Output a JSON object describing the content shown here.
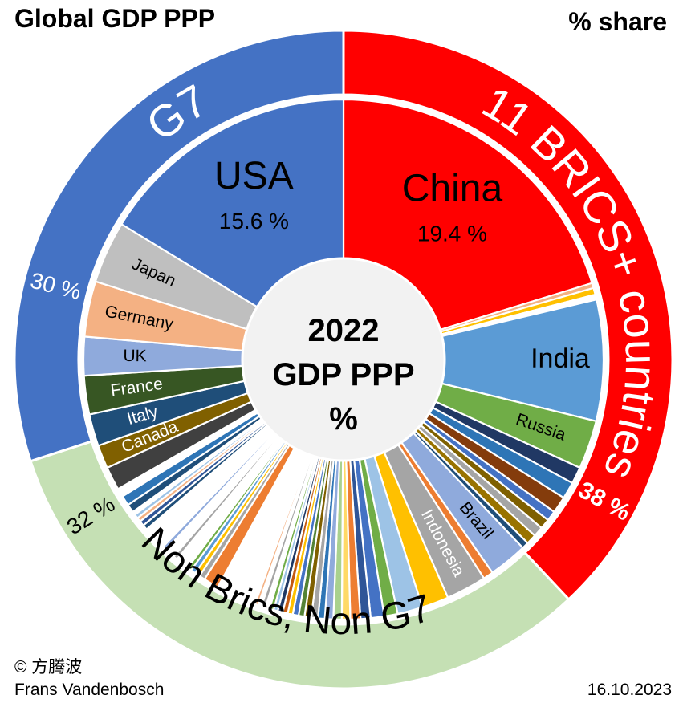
{
  "header": {
    "title": "Global GDP PPP",
    "subtitle": "% share"
  },
  "center": {
    "line1": "2022",
    "line2": "GDP PPP",
    "line3": "%"
  },
  "footer": {
    "copyright": "© 方腾波",
    "author": "Frans Vandenbosch",
    "date": "16.10.2023"
  },
  "colors": {
    "g7": "#4472C4",
    "brics": "#FF0000",
    "other": "#C5E0B4"
  },
  "chart_data": {
    "type": "pie",
    "title": "Global GDP PPP",
    "subtitle": "% share",
    "groups": [
      {
        "name": "G7",
        "share_label": "30 %",
        "value": 30,
        "color": "#4472C4"
      },
      {
        "name": "11 BRICS+ countries",
        "share_label": "38 %",
        "value": 38,
        "color": "#FF0000"
      },
      {
        "name": "Non Brics, Non G7",
        "share_label": "32 %",
        "value": 32,
        "color": "#C5E0B4"
      }
    ],
    "slices": [
      {
        "name": "China",
        "label": "China",
        "value_label": "19.4 %",
        "value": 19.4,
        "color": "#FF0000",
        "text_color": "#000000"
      },
      {
        "name": "",
        "value": 0.3,
        "color": "#F4B183"
      },
      {
        "name": "",
        "value": 0.4,
        "color": "#FFC000"
      },
      {
        "name": "",
        "value": 0.3,
        "color": "#FFFFFF"
      },
      {
        "name": "India",
        "label": "India",
        "value": 7.2,
        "color": "#5B9BD5",
        "text_color": "#000000"
      },
      {
        "name": "Russia",
        "label": "Russia",
        "value": 2.9,
        "color": "#70AD47",
        "text_color": "#000000"
      },
      {
        "name": "",
        "value": 1.0,
        "color": "#203864"
      },
      {
        "name": "",
        "value": 1.0,
        "color": "#2E75B6"
      },
      {
        "name": "",
        "value": 1.0,
        "color": "#843C0C"
      },
      {
        "name": "",
        "value": 0.6,
        "color": "#4472C4"
      },
      {
        "name": "",
        "value": 0.6,
        "color": "#7F6000"
      },
      {
        "name": "",
        "value": 0.6,
        "color": "#A5A5A5"
      },
      {
        "name": "",
        "value": 0.6,
        "color": "#997300"
      },
      {
        "name": "",
        "value": 0.4,
        "color": "#1F4E79"
      },
      {
        "name": "Brazil",
        "label": "Brazil",
        "value": 2.3,
        "color": "#8FAADC",
        "text_color": "#000000"
      },
      {
        "name": "",
        "value": 0.6,
        "color": "#ED7D31"
      },
      {
        "name": "Indonesia",
        "label": "Indonesia",
        "value": 2.4,
        "color": "#A5A5A5",
        "text_color": "#FFFFFF"
      },
      {
        "name": "",
        "value": 1.6,
        "color": "#FFC000"
      },
      {
        "name": "",
        "value": 1.5,
        "color": "#9DC3E6"
      },
      {
        "name": "",
        "value": 0.8,
        "color": "#70AD47"
      },
      {
        "name": "",
        "value": 0.8,
        "color": "#4472C4"
      },
      {
        "name": "",
        "value": 0.6,
        "color": "#2F5597"
      },
      {
        "name": "",
        "value": 0.6,
        "color": "#ED7D31"
      },
      {
        "name": "",
        "value": 0.5,
        "color": "#FFD966"
      },
      {
        "name": "",
        "value": 0.5,
        "color": "#A9D18E"
      },
      {
        "name": "",
        "value": 0.5,
        "color": "#8FAADC"
      },
      {
        "name": "",
        "value": 0.4,
        "color": "#2E75B6"
      },
      {
        "name": "",
        "value": 0.4,
        "color": "#A5A5A5"
      },
      {
        "name": "",
        "value": 0.4,
        "color": "#7F6000"
      },
      {
        "name": "",
        "value": 0.35,
        "color": "#548235"
      },
      {
        "name": "",
        "value": 0.35,
        "color": "#4472C4"
      },
      {
        "name": "",
        "value": 0.3,
        "color": "#FFC000"
      },
      {
        "name": "",
        "value": 0.3,
        "color": "#C55A11"
      },
      {
        "name": "",
        "value": 0.3,
        "color": "#203864"
      },
      {
        "name": "",
        "value": 0.25,
        "color": "#9DC3E6"
      },
      {
        "name": "",
        "value": 0.25,
        "color": "#70AD47"
      },
      {
        "name": "",
        "value": 0.25,
        "color": "#FFFFFF"
      },
      {
        "name": "",
        "value": 0.25,
        "color": "#A5A5A5"
      },
      {
        "name": "",
        "value": 0.2,
        "color": "#FFFFFF"
      },
      {
        "name": "",
        "value": 0.2,
        "color": "#F4B183"
      },
      {
        "name": "",
        "value": 0.2,
        "color": "#FFFFFF"
      },
      {
        "name": "",
        "value": 0.2,
        "color": "#FFFFFF"
      },
      {
        "name": "",
        "value": 0.2,
        "color": "#FFFFFF"
      },
      {
        "name": "",
        "value": 0.2,
        "color": "#FFFFFF"
      },
      {
        "name": "",
        "value": 0.2,
        "color": "#FFFFFF"
      },
      {
        "name": "",
        "value": 0.2,
        "color": "#FFFFFF"
      },
      {
        "name": "",
        "value": 0.2,
        "color": "#FFFFFF"
      },
      {
        "name": "",
        "value": 0.2,
        "color": "#FFFFFF"
      },
      {
        "name": "",
        "value": 0.2,
        "color": "#FFFFFF"
      },
      {
        "name": "",
        "value": 0.2,
        "color": "#FFFFFF"
      },
      {
        "name": "",
        "value": 0.2,
        "color": "#FFFFFF"
      },
      {
        "name": "",
        "value": 0.2,
        "color": "#FFFFFF"
      },
      {
        "name": "",
        "value": 0.9,
        "color": "#ED7D31"
      },
      {
        "name": "",
        "value": 0.35,
        "color": "#A5A5A5"
      },
      {
        "name": "",
        "value": 0.3,
        "color": "#FFC000"
      },
      {
        "name": "",
        "value": 0.3,
        "color": "#5B9BD5"
      },
      {
        "name": "",
        "value": 0.25,
        "color": "#70AD47"
      },
      {
        "name": "",
        "value": 0.2,
        "color": "#FFFFFF"
      },
      {
        "name": "",
        "value": 0.2,
        "color": "#FFFFFF"
      },
      {
        "name": "",
        "value": 0.2,
        "color": "#FFFFFF"
      },
      {
        "name": "",
        "value": 0.2,
        "color": "#FFFFFF"
      },
      {
        "name": "",
        "value": 0.25,
        "color": "#A5A5A5"
      },
      {
        "name": "",
        "value": 0.2,
        "color": "#FFFFFF"
      },
      {
        "name": "",
        "value": 0.2,
        "color": "#FFFFFF"
      },
      {
        "name": "",
        "value": 0.2,
        "color": "#FFFFFF"
      },
      {
        "name": "",
        "value": 0.25,
        "color": "#8FAADC"
      },
      {
        "name": "",
        "value": 0.2,
        "color": "#FFFFFF"
      },
      {
        "name": "",
        "value": 0.2,
        "color": "#FFFFFF"
      },
      {
        "name": "",
        "value": 0.2,
        "color": "#FFFFFF"
      },
      {
        "name": "",
        "value": 0.2,
        "color": "#FFFFFF"
      },
      {
        "name": "",
        "value": 0.2,
        "color": "#FFFFFF"
      },
      {
        "name": "",
        "value": 0.2,
        "color": "#FFFFFF"
      },
      {
        "name": "",
        "value": 0.2,
        "color": "#FFFFFF"
      },
      {
        "name": "",
        "value": 0.3,
        "color": "#1F4E79"
      },
      {
        "name": "",
        "value": 0.3,
        "color": "#2F5597"
      },
      {
        "name": "",
        "value": 0.25,
        "color": "#F4B183"
      },
      {
        "name": "",
        "value": 0.25,
        "color": "#9DC3E6"
      },
      {
        "name": "",
        "value": 0.2,
        "color": "#FFFFFF"
      },
      {
        "name": "",
        "value": 0.5,
        "color": "#1F4E79"
      },
      {
        "name": "",
        "value": 0.6,
        "color": "#2E75B6"
      },
      {
        "name": "",
        "value": 0.5,
        "color": "#FFFFFF"
      },
      {
        "name": "",
        "value": 1.4,
        "color": "#404040"
      },
      {
        "name": "Canada",
        "label": "Canada",
        "value": 1.4,
        "color": "#806000",
        "text_color": "#FFFFFF"
      },
      {
        "name": "Italy",
        "label": "Italy",
        "value": 1.9,
        "color": "#1F4E79",
        "text_color": "#FFFFFF"
      },
      {
        "name": "France",
        "label": "France",
        "value": 2.3,
        "color": "#375623",
        "text_color": "#FFFFFF"
      },
      {
        "name": "UK",
        "label": "UK",
        "value": 2.3,
        "color": "#8FAADC",
        "text_color": "#000000"
      },
      {
        "name": "Germany",
        "label": "Germany",
        "value": 3.3,
        "color": "#F4B183",
        "text_color": "#000000"
      },
      {
        "name": "Japan",
        "label": "Japan",
        "value": 3.7,
        "color": "#BFBFBF",
        "text_color": "#000000"
      },
      {
        "name": "USA",
        "label": "USA",
        "value_label": "15.6 %",
        "value": 15.6,
        "color": "#4472C4",
        "text_color": "#000000"
      }
    ]
  }
}
